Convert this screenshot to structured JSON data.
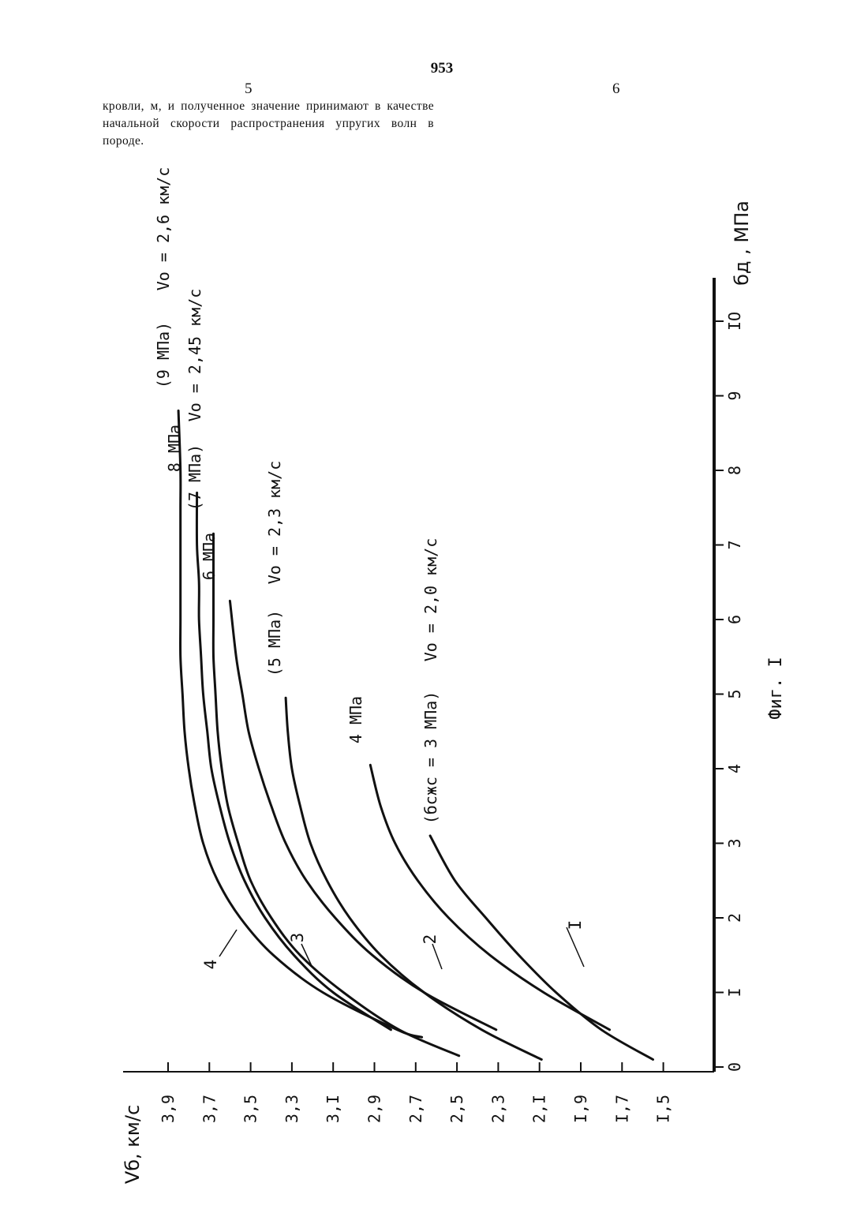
{
  "page": {
    "number": "953",
    "col_left": "5",
    "col_right": "6",
    "text": "кровли, м, и полученное значение принимают в качестве начальной скорости распространения упругих волн в породе."
  },
  "chart_data": {
    "type": "line",
    "caption": "Фиг. I",
    "xlabel": "бд , МПа",
    "ylabel": "Vб, км/с",
    "xlim": [
      0,
      10.5
    ],
    "ylim": [
      1.3,
      4.0
    ],
    "x_ticks": [
      "0",
      "I",
      "2",
      "3",
      "4",
      "5",
      "6",
      "7",
      "8",
      "9",
      "IO"
    ],
    "y_ticks": [
      "3,9",
      "3,7",
      "3,5",
      "3,3",
      "3,I",
      "2,9",
      "2,7",
      "2,5",
      "2,3",
      "2,I",
      "I,9",
      "I,7",
      "I,5"
    ],
    "series": [
      {
        "name": "I",
        "x": [
          0.1,
          0.5,
          1.0,
          1.5,
          2.0,
          2.5,
          3.1
        ],
        "y": [
          1.55,
          1.8,
          2.02,
          2.2,
          2.36,
          2.51,
          2.63
        ]
      },
      {
        "name": "",
        "x": [
          0.5,
          1.0,
          1.5,
          2.0,
          2.5,
          3.0,
          3.5,
          4.05
        ],
        "y": [
          1.76,
          2.08,
          2.34,
          2.54,
          2.69,
          2.8,
          2.87,
          2.92
        ]
      },
      {
        "name": "2",
        "x": [
          0.1,
          0.5,
          1.0,
          1.5,
          2.0,
          2.5,
          3.0,
          3.5,
          4.0,
          4.5,
          4.95
        ],
        "y": [
          2.09,
          2.38,
          2.66,
          2.87,
          3.02,
          3.13,
          3.21,
          3.26,
          3.3,
          3.32,
          3.33
        ]
      },
      {
        "name": "",
        "x": [
          0.5,
          1.0,
          1.5,
          2.0,
          2.5,
          3.0,
          3.5,
          4.0,
          4.5,
          5.0,
          5.5,
          6.25
        ],
        "y": [
          2.31,
          2.66,
          2.91,
          3.09,
          3.23,
          3.33,
          3.4,
          3.46,
          3.51,
          3.54,
          3.57,
          3.6
        ]
      },
      {
        "name": "3",
        "x": [
          0.15,
          0.5,
          1.0,
          1.5,
          2.0,
          2.5,
          3.0,
          3.5,
          4.0,
          4.5,
          5.0,
          5.5,
          6.0,
          6.5,
          7.15
        ],
        "y": [
          2.49,
          2.78,
          3.05,
          3.26,
          3.4,
          3.5,
          3.56,
          3.61,
          3.64,
          3.66,
          3.67,
          3.68,
          3.68,
          3.68,
          3.68
        ]
      },
      {
        "name": "",
        "x": [
          0.5,
          1.0,
          1.5,
          2.0,
          2.5,
          3.0,
          3.5,
          4.0,
          4.5,
          5.0,
          5.5,
          6.0,
          6.5,
          7.0,
          7.7
        ],
        "y": [
          2.82,
          3.1,
          3.29,
          3.43,
          3.53,
          3.6,
          3.65,
          3.69,
          3.71,
          3.73,
          3.74,
          3.75,
          3.75,
          3.76,
          3.76
        ]
      },
      {
        "name": "4",
        "x": [
          0.4,
          0.5,
          1.0,
          1.5,
          2.0,
          2.5,
          3.0,
          3.5,
          4.0,
          4.5,
          5.0,
          5.5,
          6.0,
          6.5,
          7.0,
          7.5,
          8.0,
          8.8
        ],
        "y": [
          2.67,
          2.79,
          3.15,
          3.39,
          3.55,
          3.66,
          3.73,
          3.77,
          3.8,
          3.82,
          3.83,
          3.84,
          3.84,
          3.84,
          3.84,
          3.84,
          3.84,
          3.85
        ]
      }
    ],
    "curve_labels": [
      "I",
      "2",
      "3",
      "4"
    ],
    "annotations": [
      "(бсжс = 3 МПа)",
      "Vo = 2,0 км/с",
      "4 МПа",
      "(5 МПа)",
      "Vo = 2,3 км/с",
      "6 МПа",
      "(7 МПа)",
      "8 МПа",
      "(9 МПа)",
      "Vo = 2,45 км/с",
      "Vo = 2,6 км/с"
    ]
  }
}
